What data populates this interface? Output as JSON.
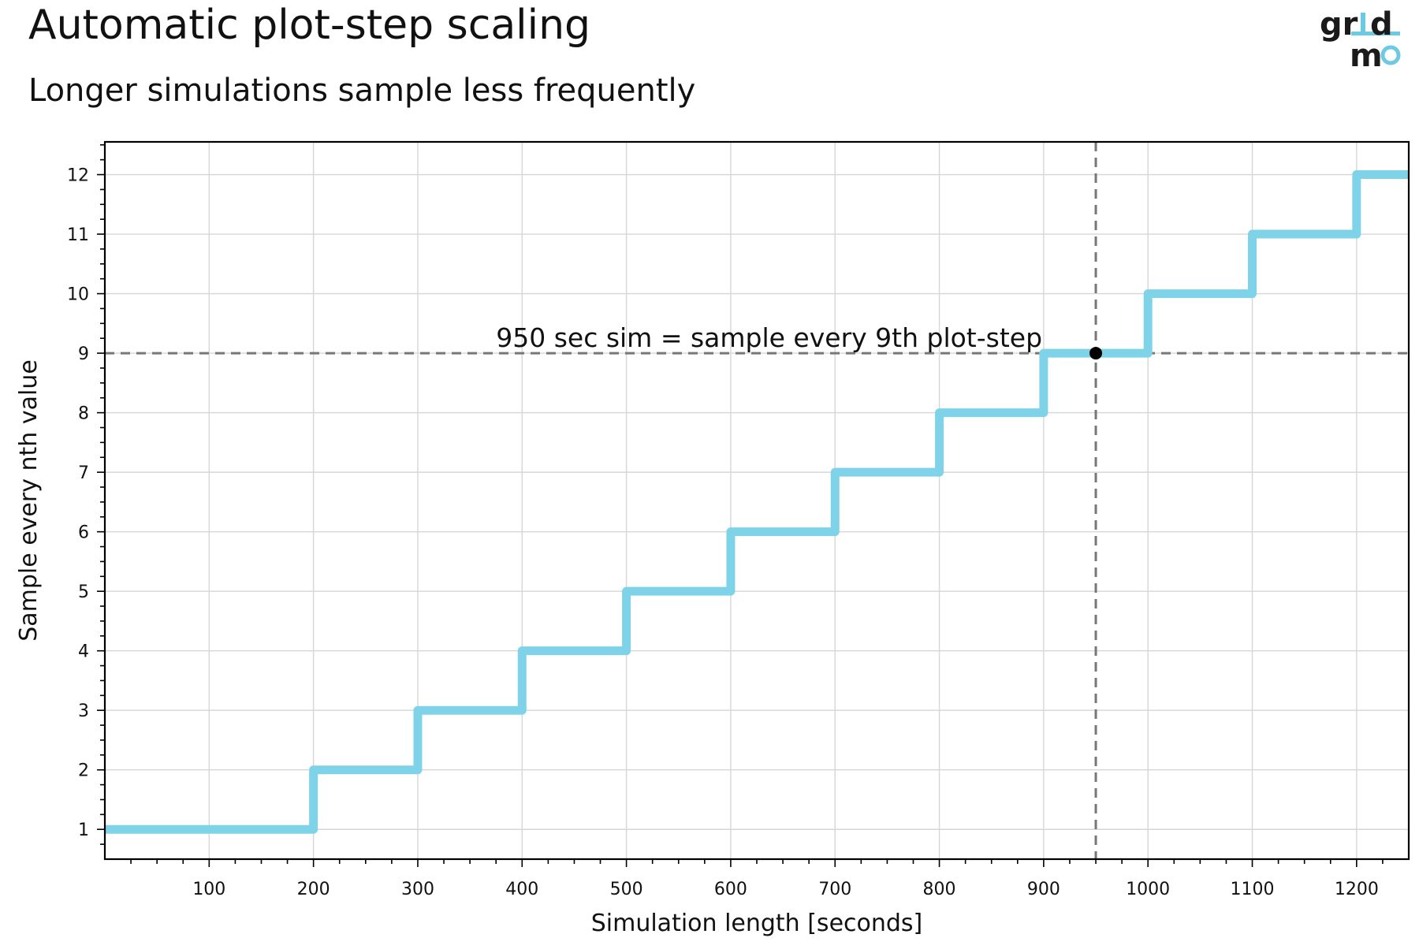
{
  "chart_data": {
    "type": "line",
    "title": "Automatic plot-step scaling",
    "subtitle": "Longer simulations sample less frequently",
    "xlabel": "Simulation length [seconds]",
    "ylabel": "Sample every nth value",
    "xlim": [
      0,
      1250
    ],
    "ylim": [
      0.5,
      12.55
    ],
    "xticks": [
      100,
      200,
      300,
      400,
      500,
      600,
      700,
      800,
      900,
      1000,
      1100,
      1200
    ],
    "yticks": [
      1,
      2,
      3,
      4,
      5,
      6,
      7,
      8,
      9,
      10,
      11,
      12
    ],
    "grid": true,
    "series": [
      {
        "step": "post",
        "color": "#7fd3e8",
        "x": [
          0,
          200,
          300,
          400,
          500,
          600,
          700,
          800,
          900,
          1000,
          1100,
          1200,
          1250
        ],
        "y": [
          1,
          2,
          3,
          4,
          5,
          6,
          7,
          8,
          9,
          10,
          11,
          12,
          12
        ]
      }
    ],
    "reference": {
      "x": 950,
      "y": 9,
      "line_color": "#777777",
      "marker_color": "#000000"
    },
    "annotation": "950 sec sim = sample every 9th plot-step"
  },
  "logo": {
    "line1": "gr",
    "line1b": "d",
    "line2": "m",
    "dark_color": "#1a1a1a",
    "accent_color": "#6ec9e2"
  }
}
